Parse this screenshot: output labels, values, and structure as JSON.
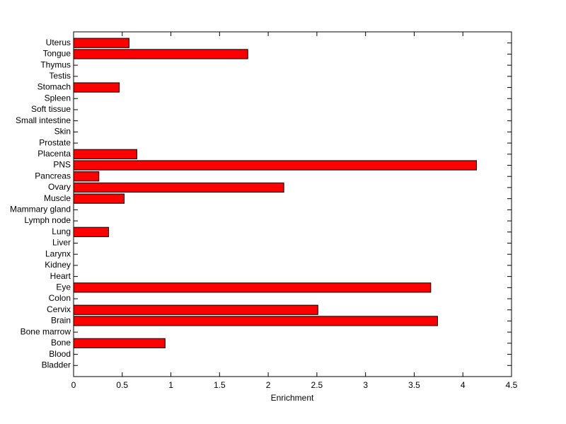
{
  "chart_data": {
    "type": "barh",
    "xlabel": "Enrichment",
    "categories": [
      "Bladder",
      "Blood",
      "Bone",
      "Bone marrow",
      "Brain",
      "Cervix",
      "Colon",
      "Eye",
      "Heart",
      "Kidney",
      "Larynx",
      "Liver",
      "Lung",
      "Lymph node",
      "Mammary gland",
      "Muscle",
      "Ovary",
      "Pancreas",
      "PNS",
      "Placenta",
      "Prostate",
      "Skin",
      "Small intestine",
      "Soft tissue",
      "Spleen",
      "Stomach",
      "Testis",
      "Thymus",
      "Tongue",
      "Uterus"
    ],
    "values": [
      0,
      0,
      0.94,
      0,
      3.74,
      2.51,
      0,
      3.67,
      0,
      0,
      0,
      0,
      0.36,
      0,
      0,
      0.52,
      2.16,
      0.26,
      4.14,
      0.65,
      0,
      0,
      0,
      0,
      0,
      0.47,
      0,
      0,
      1.79,
      0.57
    ],
    "color": "#ff0000",
    "xlim": [
      0,
      4.5
    ],
    "xticks": [
      0,
      0.5,
      1,
      1.5,
      2,
      2.5,
      3,
      3.5,
      4,
      4.5
    ]
  }
}
